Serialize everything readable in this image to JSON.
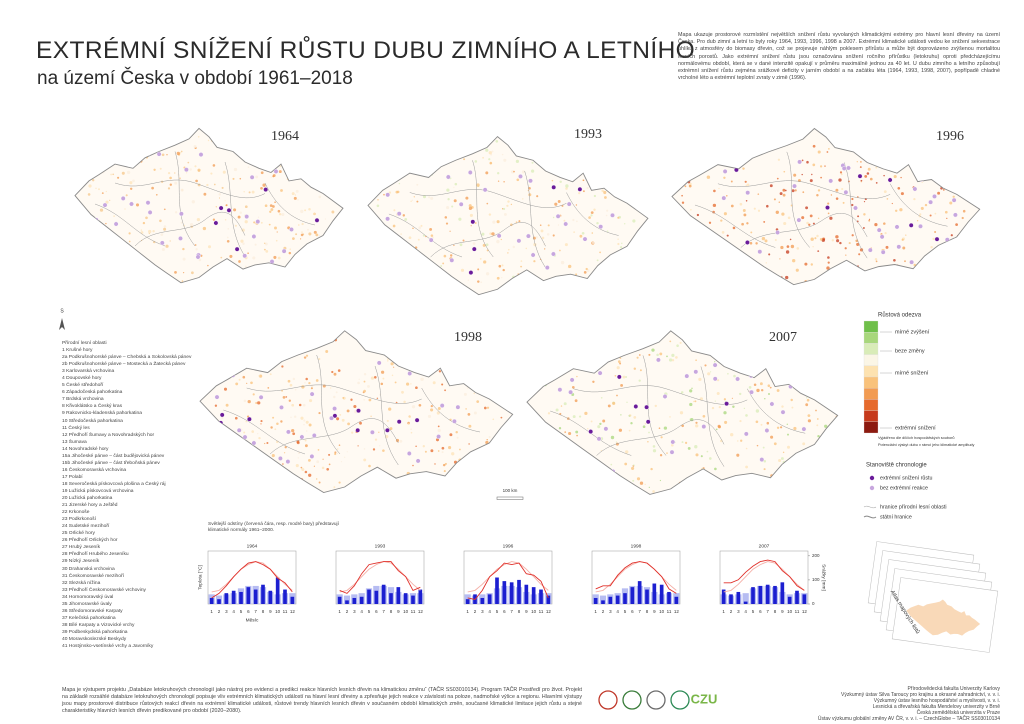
{
  "header": {
    "title": "EXTRÉMNÍ SNÍŽENÍ RŮSTU DUBU ZIMNÍHO A LETNÍHO",
    "subtitle": "na území Česka v období 1961–2018",
    "description": "Mapa ukazuje prostorové rozmístění největších snížení růstu vyvolaných klimatickými extrémy pro hlavní lesní dřeviny na území Česka. Pro dub zimní a letní to byly roky 1964, 1993, 1996, 1998 a 2007. Extrémní klimatické události vedou ke snížení sekvestrace uhlíku z atmosféry do biomasy dřevin, což se projevuje náhlým poklesem přírůstu a může být doprovázeno zvýšenou mortalitou lesních porostů. Jako extrémní snížení růstu jsou označována snížení ročního přírůstku (letokruhu) oproti předcházejícímu normálovému období, která se v dané intenzitě opakují v průměru maximálně jednou za 40 let. U dubu zimního a letního způsobují extrémní snížení růstu zejména srážkové deficity v jarním období a na začátku léta (1964, 1993, 1998, 2007), popřípadě chladné vrcholné léto a extrémní teplotní zvraty v zimě (1996)."
  },
  "maps": [
    {
      "year": "1964"
    },
    {
      "year": "1993"
    },
    {
      "year": "1996"
    },
    {
      "year": "1998"
    },
    {
      "year": "2007"
    }
  ],
  "north_label": "S",
  "scale_bar": "100 km",
  "legend": {
    "growth_title": "Růstová odezva",
    "growth_labels": [
      "mírné zvýšení",
      "beze změny",
      "mírné snížení",
      "extrémní snížení"
    ],
    "growth_note_1": "Vyjádřeno dle dílčích hospodářských souborů",
    "growth_note_2": "Potenciální výskyt dubu v rámci jeho klimatické amplitudy",
    "sites_title": "Stanoviště chronologie",
    "sites": [
      "extrémní snížení růstu",
      "bez extrémní reakce"
    ],
    "boundaries": [
      "hranice přírodní lesní oblasti",
      "státní hranice"
    ]
  },
  "regions": {
    "title": "Přírodní lesní oblasti",
    "items": [
      "1 Krušné hory",
      "2a Podkrušnohorské pánve – Chebská a Sokolovská pánev",
      "2b Podkrušnohorské pánve – Mostecká a Žatecká pánev",
      "3 Karlovarská vrchovina",
      "4 Doupovské hory",
      "5 České středohoří",
      "6 Západočeská pahorkatina",
      "7 Brdská vrchovina",
      "8 Křivoklátsko a Český kras",
      "9 Rakovnicko-kladenská pahorkatina",
      "10 Středočeská pahorkatina",
      "11 Český les",
      "12 Předhoří Šumavy a Novohradských hor",
      "13 Šumava",
      "14 Novohradské hory",
      "15a Jihočeské pánve – část budějovická pánev",
      "15b Jihočeské pánve – část třeboňská pánev",
      "16 Českomoravská vrchovina",
      "17 Polabí",
      "18 Severočeská pískovcová plošina a Český ráj",
      "19 Lužická pískovcová vrchovina",
      "20 Lužická pahorkatina",
      "21 Jizerské hory a Ještěd",
      "22 Krkonoše",
      "23 Podkrkonoší",
      "24 Sudetské mezihoří",
      "25 Orlické hory",
      "26 Předhoří Orlických hor",
      "27 Hrubý Jeseník",
      "28 Předhoří Hrubého Jeseníku",
      "29 Nízký Jeseník",
      "30 Drahanská vrchovina",
      "31 Českomoravské mezihoří",
      "32 Slezská nížina",
      "33 Předhoří Českomoravské vrchoviny",
      "34 Hornomoravský úval",
      "35 Jihomoravské úvaly",
      "36 Středomoravské Karpaty",
      "37 Kelečská pahorkatina",
      "38 Bílé Karpaty a Vizovické vrchy",
      "39 Podbeskydská pahorkatina",
      "40 Moravskoslezské Beskydy",
      "41 Hostýnsko-vsetínské vrchy a Javorníky"
    ]
  },
  "climate_note": "Světlejší odstíny (červená čára, resp. modré bary) představují klimatické normály 1961–2000.",
  "chart_data": [
    {
      "type": "combo",
      "title": "1964",
      "categories": [
        1,
        2,
        3,
        4,
        5,
        6,
        7,
        8,
        9,
        10,
        11,
        12
      ],
      "ylim": [
        -10,
        25
      ],
      "y2lim": [
        0,
        220
      ],
      "ylabel": "Teplota [°C]",
      "xlabel": "Měsíc",
      "series": [
        {
          "type": "bar",
          "axis": "y2",
          "color": "#b6bcf2",
          "values": [
            40,
            35,
            40,
            45,
            65,
            75,
            75,
            70,
            50,
            40,
            45,
            45
          ]
        },
        {
          "type": "bar",
          "axis": "y2",
          "color": "#1c1fd0",
          "values": [
            25,
            20,
            45,
            55,
            50,
            70,
            60,
            80,
            55,
            110,
            60,
            30
          ]
        },
        {
          "type": "line",
          "color": "#f4b0a8",
          "values": [
            -2,
            -1,
            3,
            8,
            13,
            16,
            18,
            17,
            13,
            8,
            3,
            -1
          ]
        },
        {
          "type": "line",
          "color": "#e0302a",
          "values": [
            -6,
            -3,
            2,
            8,
            13,
            17,
            18,
            16,
            13,
            7,
            4,
            -2
          ]
        }
      ]
    },
    {
      "type": "combo",
      "title": "1993",
      "categories": [
        1,
        2,
        3,
        4,
        5,
        6,
        7,
        8,
        9,
        10,
        11,
        12
      ],
      "ylim": [
        -10,
        25
      ],
      "y2lim": [
        0,
        220
      ],
      "series": [
        {
          "type": "bar",
          "axis": "y2",
          "color": "#b6bcf2",
          "values": [
            40,
            35,
            40,
            45,
            65,
            75,
            75,
            70,
            50,
            40,
            45,
            45
          ]
        },
        {
          "type": "bar",
          "axis": "y2",
          "color": "#1c1fd0",
          "values": [
            30,
            15,
            25,
            30,
            60,
            55,
            80,
            45,
            70,
            45,
            35,
            60
          ]
        },
        {
          "type": "line",
          "color": "#f4b0a8",
          "values": [
            -2,
            -1,
            3,
            8,
            13,
            16,
            18,
            17,
            13,
            8,
            3,
            -1
          ]
        },
        {
          "type": "line",
          "color": "#e0302a",
          "values": [
            -1,
            -3,
            2,
            10,
            16,
            17,
            18,
            18,
            12,
            8,
            -1,
            1
          ]
        }
      ]
    },
    {
      "type": "combo",
      "title": "1996",
      "categories": [
        1,
        2,
        3,
        4,
        5,
        6,
        7,
        8,
        9,
        10,
        11,
        12
      ],
      "ylim": [
        -10,
        25
      ],
      "y2lim": [
        0,
        220
      ],
      "series": [
        {
          "type": "bar",
          "axis": "y2",
          "color": "#b6bcf2",
          "values": [
            40,
            35,
            40,
            45,
            65,
            75,
            75,
            70,
            50,
            40,
            45,
            45
          ]
        },
        {
          "type": "bar",
          "axis": "y2",
          "color": "#1c1fd0",
          "values": [
            20,
            40,
            25,
            40,
            110,
            95,
            90,
            100,
            80,
            70,
            60,
            35
          ]
        },
        {
          "type": "line",
          "color": "#f4b0a8",
          "values": [
            -2,
            -1,
            3,
            8,
            13,
            16,
            18,
            17,
            13,
            8,
            3,
            -1
          ]
        },
        {
          "type": "line",
          "color": "#e0302a",
          "values": [
            -6,
            -7,
            -1,
            8,
            12,
            17,
            16,
            17,
            10,
            9,
            5,
            -6
          ]
        }
      ]
    },
    {
      "type": "combo",
      "title": "1998",
      "categories": [
        1,
        2,
        3,
        4,
        5,
        6,
        7,
        8,
        9,
        10,
        11,
        12
      ],
      "ylim": [
        -10,
        25
      ],
      "y2lim": [
        0,
        220
      ],
      "series": [
        {
          "type": "bar",
          "axis": "y2",
          "color": "#b6bcf2",
          "values": [
            40,
            35,
            40,
            45,
            65,
            75,
            75,
            70,
            50,
            40,
            45,
            45
          ]
        },
        {
          "type": "bar",
          "axis": "y2",
          "color": "#1c1fd0",
          "values": [
            25,
            15,
            30,
            35,
            45,
            70,
            95,
            60,
            85,
            80,
            50,
            30
          ]
        },
        {
          "type": "line",
          "color": "#f4b0a8",
          "values": [
            -2,
            -1,
            3,
            8,
            13,
            16,
            18,
            17,
            13,
            8,
            3,
            -1
          ]
        },
        {
          "type": "line",
          "color": "#e0302a",
          "values": [
            0,
            2,
            2,
            9,
            14,
            17,
            18,
            17,
            13,
            8,
            0,
            -3
          ]
        }
      ]
    },
    {
      "type": "combo",
      "title": "2007",
      "categories": [
        1,
        2,
        3,
        4,
        5,
        6,
        7,
        8,
        9,
        10,
        11,
        12
      ],
      "ylim": [
        -10,
        25
      ],
      "y2lim": [
        0,
        220
      ],
      "y2ticks": [
        0,
        100,
        200
      ],
      "y2label": "Srážky [mm]",
      "series": [
        {
          "type": "bar",
          "axis": "y2",
          "color": "#b6bcf2",
          "values": [
            40,
            35,
            40,
            45,
            65,
            75,
            75,
            70,
            50,
            40,
            45,
            45
          ]
        },
        {
          "type": "bar",
          "axis": "y2",
          "color": "#1c1fd0",
          "values": [
            60,
            40,
            50,
            10,
            70,
            75,
            80,
            75,
            90,
            30,
            55,
            40
          ]
        },
        {
          "type": "line",
          "color": "#f4b0a8",
          "values": [
            -2,
            -1,
            3,
            8,
            13,
            16,
            18,
            17,
            13,
            8,
            3,
            -1
          ]
        },
        {
          "type": "line",
          "color": "#e0302a",
          "values": [
            4,
            4,
            6,
            11,
            15,
            18,
            19,
            18,
            12,
            8,
            2,
            -1
          ]
        }
      ]
    }
  ],
  "atlas_label": "Atlas mapových listů",
  "footer": {
    "project_text": "Mapa je výstupem projektu „Databáze letokruhových chronologií jako nástroj pro evidenci a predikci reakce hlavních lesních dřevin na klimatickou změnu“ (TAČR SS03010134). Program TAČR Prostředí pro život. Projekt na základě rozsáhlé databáze letokruhových chronologií popisuje vliv extrémních klimatických událostí na hlavní lesní dřeviny a zpřesňuje jejich reakce v závislosti na poloze, nadmořské výšce a regionu. Hlavními výstupy jsou mapy prostorové distribuce růstových reakcí dřevin na extrémní klimatické události, růstové trendy hlavních lesních dřevin v současném období klimatických změn, současné klimatické limitace jejich růstu a stejné charakteristiky hlavních lesních dřevin predikované pro období (2020–2080).",
    "logo_text": "CZU",
    "institutions": [
      "Přírodovědecká fakulta Univerzity Karlovy",
      "Výzkumný ústav Silva Taroucy pro krajinu a okrasné zahradnictví, v. v. i.",
      "Výzkumný ústav lesního hospodářství a myslivosti, v. v. i.",
      "Lesnická a dřevařská fakulta Mendelovy univerzity v Brně",
      "Česká zemědělská univerzita v Praze",
      "Ústav výzkumu globální změny AV ČR, v. v. i. – CzechGlobe – TAČR SS03010134"
    ]
  }
}
